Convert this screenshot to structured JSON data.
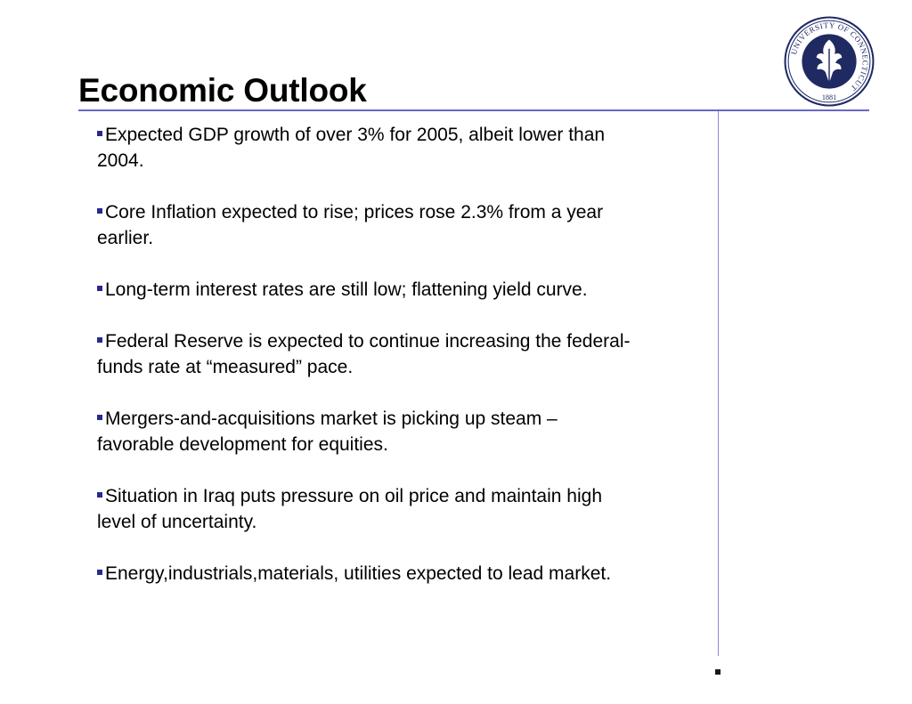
{
  "slide": {
    "title": "Economic Outlook",
    "bullets": [
      "Expected GDP growth of over 3% for 2005, albeit lower than 2004.",
      "Core Inflation expected to rise; prices rose 2.3% from a year earlier.",
      "Long-term interest rates are still low; flattening yield curve.",
      "Federal Reserve is expected to continue increasing the federal-funds rate at “measured” pace.",
      "Mergers-and-acquisitions market is picking up steam – favorable development for equities.",
      "Situation in Iraq puts pressure on oil price and maintain high level of uncertainty.",
      "Energy,industrials,materials, utilities expected to lead market."
    ]
  },
  "logo": {
    "icon": "university-seal-icon",
    "ring_text": "UNIVERSITY OF CONNECTICUT",
    "year": "1881"
  },
  "colors": {
    "accent": "#6a67c8",
    "seal_navy": "#1f2a63"
  }
}
